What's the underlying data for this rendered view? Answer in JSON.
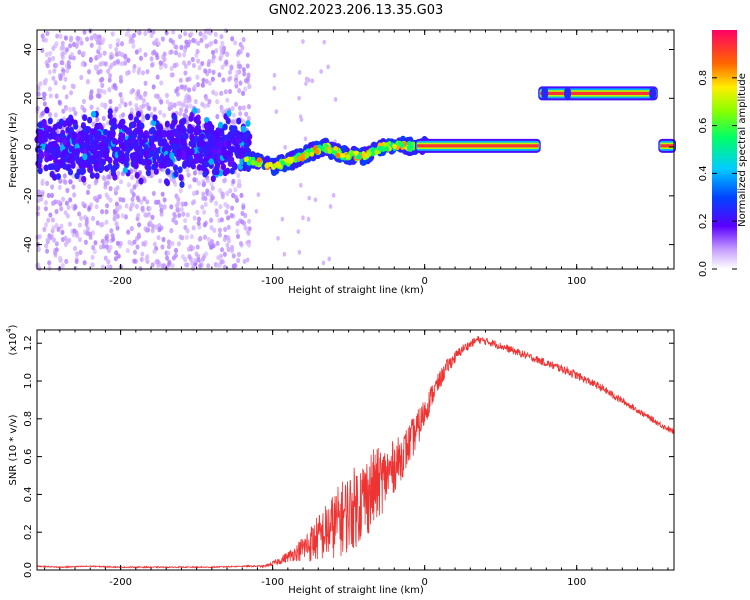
{
  "figure": {
    "title": "GN02.2023.206.13.35.G03"
  },
  "chart_data": [
    {
      "type": "heatmap",
      "xlabel": "Height of straight line (km)",
      "ylabel": "Frequency (Hz)",
      "xlim": [
        -255,
        164
      ],
      "ylim": [
        -50,
        48
      ],
      "xticks": [
        -200,
        -100,
        0,
        100
      ],
      "xtick_labels": [
        "-200",
        "-100",
        "0",
        "100"
      ],
      "yticks": [
        -40,
        -20,
        0,
        20,
        40
      ],
      "ytick_labels": [
        "-40",
        "-20",
        "0",
        "20",
        "40"
      ],
      "colorbar": {
        "label": "Normalized spectral amplitude",
        "range": [
          0,
          1
        ],
        "ticks": [
          0.0,
          0.2,
          0.4,
          0.6,
          0.8
        ],
        "tick_labels": [
          "0.0",
          "0.2",
          "0.4",
          "0.6",
          "0.8"
        ]
      },
      "features": [
        {
          "kind": "noise_scatter",
          "x_range": [
            -255,
            -115
          ],
          "y_range": [
            -50,
            48
          ],
          "amplitude": 0.1
        },
        {
          "kind": "dense_band",
          "x_range": [
            -255,
            -115
          ],
          "y_center": 0,
          "y_halfwidth": 8,
          "amplitude": 0.3
        },
        {
          "kind": "track",
          "points": [
            [
              -118,
              -5
            ],
            [
              -100,
              -8
            ],
            [
              -85,
              -5
            ],
            [
              -75,
              -2
            ],
            [
              -65,
              0
            ],
            [
              -55,
              -3
            ],
            [
              -40,
              -4
            ],
            [
              -28,
              0
            ],
            [
              -15,
              1
            ],
            [
              -8,
              0
            ],
            [
              0,
              0.5
            ]
          ],
          "amplitude": 0.7
        },
        {
          "kind": "line",
          "x_range": [
            -5,
            75
          ],
          "y": 0.5,
          "amplitude": 0.9
        },
        {
          "kind": "line",
          "x_range": [
            76,
            152
          ],
          "y": 22,
          "amplitude": 0.9
        },
        {
          "kind": "line",
          "x_range": [
            155,
            164
          ],
          "y": 0.5,
          "amplitude": 0.9
        }
      ]
    },
    {
      "type": "line",
      "xlabel": "Height of straight line (km)",
      "ylabel": "SNR (10 * v/v)",
      "multiplier": "(x10",
      "multiplier_exp": "4",
      "multiplier_close": ")",
      "xlim": [
        -255,
        164
      ],
      "ylim": [
        0,
        1.27
      ],
      "xticks": [
        -200,
        -100,
        0,
        100
      ],
      "xtick_labels": [
        "-200",
        "-100",
        "0",
        "100"
      ],
      "yticks": [
        0.0,
        0.2,
        0.4,
        0.6,
        0.8,
        1.0,
        1.2
      ],
      "ytick_labels": [
        "0.0",
        "0.2",
        "0.4",
        "0.6",
        "0.8",
        "1.0",
        "1.2"
      ],
      "color": "#ee3333",
      "series": [
        {
          "x": [
            -255,
            -240,
            -220,
            -200,
            -180,
            -160,
            -140,
            -120,
            -105,
            -95,
            -85,
            -75,
            -65,
            -55,
            -45,
            -35,
            -25,
            -15,
            -5,
            5,
            15,
            25,
            35,
            45,
            55,
            65,
            75,
            85,
            95,
            105,
            115,
            125,
            135,
            145,
            155,
            164
          ],
          "y": [
            0.02,
            0.015,
            0.02,
            0.015,
            0.015,
            0.015,
            0.015,
            0.02,
            0.02,
            0.05,
            0.09,
            0.14,
            0.2,
            0.27,
            0.34,
            0.42,
            0.5,
            0.6,
            0.74,
            0.93,
            1.08,
            1.17,
            1.22,
            1.2,
            1.17,
            1.14,
            1.11,
            1.08,
            1.05,
            1.01,
            0.97,
            0.92,
            0.87,
            0.82,
            0.77,
            0.73
          ],
          "noise": [
            0.003,
            0.003,
            0.003,
            0.003,
            0.003,
            0.003,
            0.003,
            0.003,
            0.005,
            0.02,
            0.04,
            0.1,
            0.15,
            0.2,
            0.22,
            0.22,
            0.16,
            0.12,
            0.1,
            0.06,
            0.04,
            0.025,
            0.02,
            0.02,
            0.02,
            0.02,
            0.02,
            0.02,
            0.025,
            0.02,
            0.02,
            0.02,
            0.015,
            0.015,
            0.015,
            0.015
          ]
        }
      ]
    }
  ]
}
